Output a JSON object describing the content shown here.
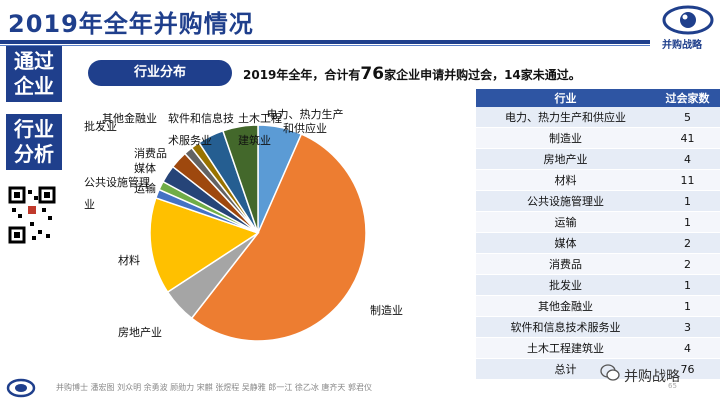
{
  "header": {
    "title": "2019年全年并购情况",
    "logo_text": "并购战略",
    "logo_icon": "eye-icon"
  },
  "sidebar": {
    "block1": "通过企业",
    "block2": "行业分析",
    "qr_icon": "qr-code-icon"
  },
  "section": {
    "pill": "行业分布",
    "summary_pre": "2019年全年，合计有",
    "summary_num": "76",
    "summary_post": "家企业申请并购过会，14家未通过。"
  },
  "table": {
    "headers": [
      "行业",
      "过会家数"
    ],
    "rows": [
      [
        "电力、热力生产和供应业",
        "5"
      ],
      [
        "制造业",
        "41"
      ],
      [
        "房地产业",
        "4"
      ],
      [
        "材料",
        "11"
      ],
      [
        "公共设施管理业",
        "1"
      ],
      [
        "运输",
        "1"
      ],
      [
        "媒体",
        "2"
      ],
      [
        "消费品",
        "2"
      ],
      [
        "批发业",
        "1"
      ],
      [
        "其他金融业",
        "1"
      ],
      [
        "软件和信息技术服务业",
        "3"
      ],
      [
        "土木工程建筑业",
        "4"
      ],
      [
        "总计",
        "76"
      ]
    ]
  },
  "chart_data": {
    "type": "pie",
    "categories": [
      "电力、热力生产和供应业",
      "制造业",
      "房地产业",
      "材料",
      "公共设施管理业",
      "运输",
      "媒体",
      "消费品",
      "批发业",
      "其他金融业",
      "软件和信息技术服务业",
      "土木工程建筑业"
    ],
    "values": [
      5,
      41,
      4,
      11,
      1,
      1,
      2,
      2,
      1,
      1,
      3,
      4
    ],
    "colors": [
      "#5b9bd5",
      "#ed7d31",
      "#a5a5a5",
      "#ffc000",
      "#4472c4",
      "#70ad47",
      "#264478",
      "#9e480e",
      "#636363",
      "#997300",
      "#255e91",
      "#43682b"
    ]
  },
  "pie_labels": [
    "电力、热力生产和供应业",
    "制造业",
    "房地产业",
    "材料",
    "公共设施管理业",
    "运输",
    "媒体",
    "消费品",
    "批发业",
    "其他金融业",
    "软件和信息技术服务业",
    "土木工程建筑业"
  ],
  "footer": {
    "text": "并购博士 潘宏图 刘众明 余勇波 顾勋力 宋麒 张煜程 吴静雅 郎一江 徐乙冰 唐齐天 郭君仪",
    "page": "65",
    "watermark": "并购战略",
    "watermark_icon": "wechat-icon"
  }
}
